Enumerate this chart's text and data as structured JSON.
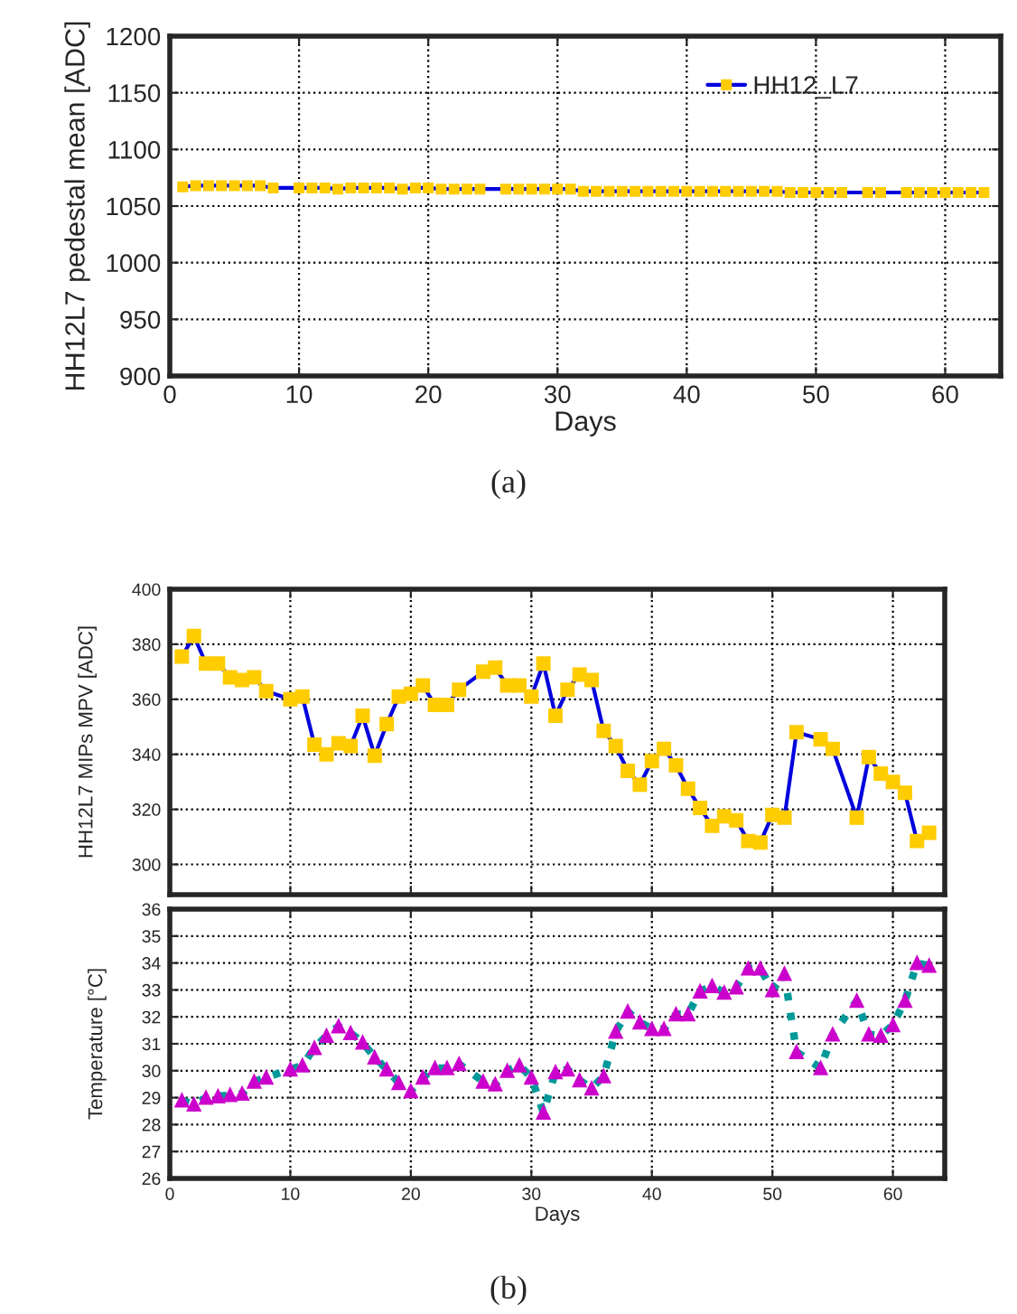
{
  "chart_data": [
    {
      "type": "line",
      "xlabel": "Days",
      "ylabel": "HH12L7 pedestal mean [ADC]",
      "x": [
        1,
        2,
        3,
        4,
        5,
        6,
        7,
        8,
        10,
        11,
        12,
        13,
        14,
        15,
        16,
        17,
        18,
        19,
        20,
        21,
        22,
        23,
        24,
        26,
        27,
        28,
        29,
        30,
        31,
        32,
        33,
        34,
        35,
        36,
        37,
        38,
        39,
        40,
        41,
        42,
        43,
        44,
        45,
        46,
        47,
        48,
        49,
        50,
        51,
        52,
        54,
        55,
        57,
        58,
        59,
        60,
        61,
        62,
        63
      ],
      "series": [
        {
          "name": "HH12_L7",
          "color": "#ffcc00",
          "values": [
            1067,
            1068,
            1068,
            1068,
            1068,
            1068,
            1068,
            1066,
            1066,
            1066,
            1066,
            1065,
            1066,
            1066,
            1066,
            1066,
            1065,
            1066,
            1066,
            1065,
            1065,
            1065,
            1065,
            1065,
            1065,
            1065,
            1065,
            1065,
            1065,
            1063,
            1063,
            1063,
            1063,
            1063,
            1063,
            1063,
            1063,
            1063,
            1063,
            1063,
            1063,
            1063,
            1063,
            1063,
            1063,
            1062,
            1062,
            1062,
            1062,
            1062,
            1062,
            1062,
            1062,
            1062,
            1062,
            1062,
            1062,
            1062,
            1062
          ]
        }
      ],
      "xlim": [
        0,
        64.3
      ],
      "ylim": [
        900,
        1200
      ],
      "xticks": [
        0,
        10,
        20,
        30,
        40,
        50,
        60
      ],
      "yticks": [
        900,
        950,
        1000,
        1050,
        1100,
        1150,
        1200
      ],
      "grid": true,
      "legend": "top right",
      "marker": "square",
      "line_style": "solid",
      "annotations": [
        "(a)"
      ]
    },
    {
      "type": "line",
      "ylabel": "HH12L7 MIPs MPV [ADC]",
      "x": [
        1,
        2,
        3,
        4,
        5,
        6,
        7,
        8,
        10,
        11,
        12,
        13,
        14,
        15,
        16,
        17,
        18,
        19,
        20,
        21,
        22,
        23,
        24,
        26,
        27,
        28,
        29,
        30,
        31,
        32,
        33,
        34,
        35,
        36,
        37,
        38,
        39,
        40,
        41,
        42,
        43,
        44,
        45,
        46,
        47,
        48,
        49,
        50,
        51,
        52,
        54,
        55,
        57,
        58,
        59,
        60,
        61,
        62,
        63
      ],
      "series": [
        {
          "color": "#ffcc00",
          "values": [
            375.5,
            383,
            373,
            373,
            368,
            367,
            368,
            363,
            360,
            361,
            343.5,
            340,
            344,
            343,
            354,
            339.5,
            351,
            361,
            362,
            365,
            358,
            358,
            363.5,
            370,
            371.5,
            365,
            365,
            361,
            373,
            354,
            363.5,
            369,
            367,
            348.5,
            343,
            334,
            329,
            337.5,
            342,
            336,
            327.5,
            320.5,
            314,
            317.5,
            316,
            308.5,
            308,
            318,
            317,
            348,
            345.5,
            342,
            317,
            339,
            333,
            330,
            326,
            308.5,
            311.5
          ]
        }
      ],
      "xlim": [
        0,
        64.3
      ],
      "ylim": [
        289,
        400
      ],
      "xticks": [
        0,
        10,
        20,
        30,
        40,
        50,
        60
      ],
      "yticks": [
        300,
        320,
        340,
        360,
        380,
        400
      ],
      "grid": true,
      "marker": "square",
      "line_style": "solid",
      "tick_labels": "y"
    },
    {
      "type": "line",
      "xlabel": "Days",
      "ylabel": "Temperature [°C]",
      "x": [
        1,
        2,
        3,
        4,
        5,
        6,
        7,
        8,
        10,
        11,
        12,
        13,
        14,
        15,
        16,
        17,
        18,
        19,
        20,
        21,
        22,
        23,
        24,
        26,
        27,
        28,
        29,
        30,
        31,
        32,
        33,
        34,
        35,
        36,
        37,
        38,
        39,
        40,
        41,
        42,
        43,
        44,
        45,
        46,
        47,
        48,
        49,
        50,
        51,
        52,
        54,
        55,
        57,
        58,
        59,
        60,
        61,
        62,
        63
      ],
      "series": [
        {
          "color": "#cc00cc",
          "values": [
            28.9,
            28.75,
            29.0,
            29.05,
            29.1,
            29.15,
            29.6,
            29.75,
            30.05,
            30.2,
            30.85,
            31.3,
            31.65,
            31.4,
            31.05,
            30.5,
            30.05,
            29.55,
            29.25,
            29.75,
            30.1,
            30.1,
            30.25,
            29.6,
            29.5,
            30.0,
            30.2,
            29.75,
            28.45,
            29.95,
            30.05,
            29.65,
            29.35,
            29.8,
            31.45,
            32.2,
            31.8,
            31.55,
            31.55,
            32.1,
            32.1,
            32.95,
            33.15,
            32.9,
            33.1,
            33.8,
            33.8,
            33.0,
            33.6,
            30.7,
            30.1,
            31.35,
            32.6,
            31.35,
            31.3,
            31.7,
            32.6,
            34.0,
            33.9
          ]
        }
      ],
      "xlim": [
        0,
        64.3
      ],
      "ylim": [
        26,
        36
      ],
      "xticks": [
        0,
        10,
        20,
        30,
        40,
        50,
        60
      ],
      "yticks": [
        26,
        27,
        28,
        29,
        30,
        31,
        32,
        33,
        34,
        35,
        36
      ],
      "grid": true,
      "marker": "triangle",
      "line_style": "dotted",
      "annotations": [
        "(b)"
      ]
    }
  ]
}
